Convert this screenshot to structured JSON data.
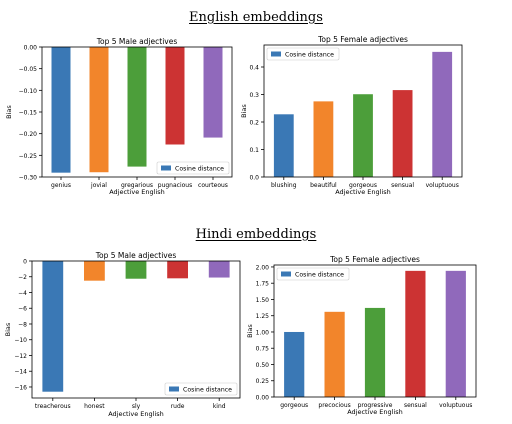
{
  "sections": [
    {
      "title": "English embeddings"
    },
    {
      "title": "Hindi embeddings"
    }
  ],
  "chart_data": [
    {
      "type": "bar",
      "title": "Top 5 Male adjectives",
      "xlabel": "Adjective English",
      "ylabel": "Bias",
      "categories": [
        "genius",
        "jovial",
        "gregarious",
        "pugnacious",
        "courteous"
      ],
      "series": [
        {
          "name": "Cosine distance",
          "values": [
            -0.29,
            -0.289,
            -0.276,
            -0.225,
            -0.209
          ]
        }
      ],
      "colors": [
        "#3a78b5",
        "#f2852b",
        "#4c9e3a",
        "#cc3333",
        "#9069bb"
      ],
      "ylim": [
        -0.3,
        0.0
      ],
      "yticks": [
        0.0,
        -0.05,
        -0.1,
        -0.15,
        -0.2,
        -0.25,
        -0.3
      ],
      "ytick_labels": [
        "0.00",
        "−0.05",
        "−0.10",
        "−0.15",
        "−0.20",
        "−0.25",
        "−0.30"
      ],
      "legend": "bottom-right",
      "grid": false
    },
    {
      "type": "bar",
      "title": "Top 5 Female adjectives",
      "xlabel": "Adjective English",
      "ylabel": "Bias",
      "categories": [
        "blushing",
        "beautiful",
        "gorgeous",
        "sensual",
        "voluptuous"
      ],
      "series": [
        {
          "name": "Cosine distance",
          "values": [
            0.228,
            0.275,
            0.301,
            0.316,
            0.455
          ]
        }
      ],
      "colors": [
        "#3a78b5",
        "#f2852b",
        "#4c9e3a",
        "#cc3333",
        "#9069bb"
      ],
      "ylim": [
        0.0,
        0.48
      ],
      "yticks": [
        0.0,
        0.1,
        0.2,
        0.3,
        0.4
      ],
      "ytick_labels": [
        "0.0",
        "0.1",
        "0.2",
        "0.3",
        "0.4"
      ],
      "legend": "top-left",
      "grid": false
    },
    {
      "type": "bar",
      "title": "Top 5 Male adjectives",
      "xlabel": "Adjective English",
      "ylabel": "Bias",
      "categories": [
        "treacherous",
        "honest",
        "sly",
        "rude",
        "kind"
      ],
      "series": [
        {
          "name": "Cosine distance",
          "values": [
            -16.6,
            -2.5,
            -2.25,
            -2.2,
            -2.1
          ]
        }
      ],
      "colors": [
        "#3a78b5",
        "#f2852b",
        "#4c9e3a",
        "#cc3333",
        "#9069bb"
      ],
      "ylim": [
        -17.4,
        0.0
      ],
      "yticks": [
        0,
        -2,
        -4,
        -6,
        -8,
        -10,
        -12,
        -14,
        -16
      ],
      "ytick_labels": [
        "0",
        "−2",
        "−4",
        "−6",
        "−8",
        "−10",
        "−12",
        "−14",
        "−16"
      ],
      "legend": "bottom-right",
      "grid": false
    },
    {
      "type": "bar",
      "title": "Top 5 Female adjectives",
      "xlabel": "Adjective English",
      "ylabel": "Bias",
      "categories": [
        "gorgeous",
        "precocious",
        "progressive",
        "sensual",
        "voluptuous"
      ],
      "series": [
        {
          "name": "Cosine distance",
          "values": [
            1.0,
            1.31,
            1.37,
            1.94,
            1.94
          ]
        }
      ],
      "colors": [
        "#3a78b5",
        "#f2852b",
        "#4c9e3a",
        "#cc3333",
        "#9069bb"
      ],
      "ylim": [
        0.0,
        2.03
      ],
      "yticks": [
        0.0,
        0.25,
        0.5,
        0.75,
        1.0,
        1.25,
        1.5,
        1.75,
        2.0
      ],
      "ytick_labels": [
        "0.00",
        "0.25",
        "0.50",
        "0.75",
        "1.00",
        "1.25",
        "1.50",
        "1.75",
        "2.00"
      ],
      "legend": "top-left",
      "grid": false
    }
  ]
}
